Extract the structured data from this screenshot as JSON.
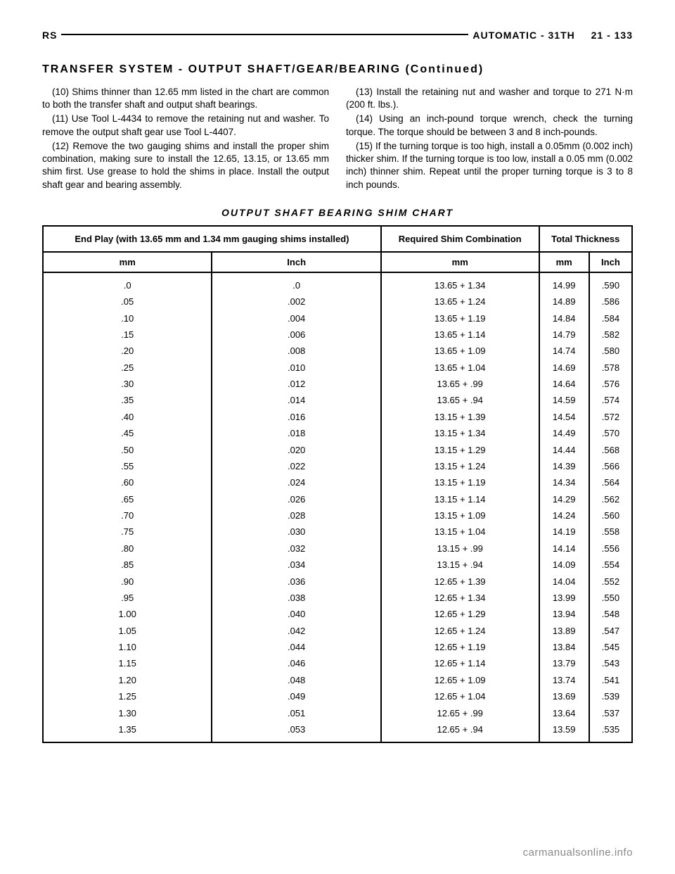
{
  "header": {
    "left": "RS",
    "right_section": "AUTOMATIC - 31TH",
    "page": "21 - 133"
  },
  "section_title": "TRANSFER SYSTEM - OUTPUT SHAFT/GEAR/BEARING (Continued)",
  "left_col": [
    "(10) Shims thinner than 12.65 mm listed in the chart are common to both the transfer shaft and output shaft bearings.",
    "(11) Use Tool L-4434 to remove the retaining nut and washer. To remove the output shaft gear use Tool L-4407.",
    "(12) Remove the two gauging shims and install the proper shim combination, making sure to install the 12.65, 13.15, or 13.65 mm shim first. Use grease to hold the shims in place. Install the output shaft gear and bearing assembly."
  ],
  "right_col": [
    "(13) Install the retaining nut and washer and torque to 271 N·m (200 ft. lbs.).",
    "(14) Using an inch-pound torque wrench, check the turning torque. The torque should be between 3 and 8 inch-pounds.",
    "(15) If the turning torque is too high, install a 0.05mm (0.002 inch) thicker shim. If the turning torque is too low, install a 0.05 mm (0.002 inch) thinner shim. Repeat until the proper turning torque is 3 to 8 inch pounds."
  ],
  "chart_title": "OUTPUT SHAFT BEARING SHIM CHART",
  "table": {
    "head1": "End Play (with 13.65 mm and 1.34 mm gauging shims installed)",
    "head2": "Required Shim Combination",
    "head3": "Total Thickness",
    "unit_mm": "mm",
    "unit_inch": "Inch",
    "rows": [
      [
        ".0",
        ".0",
        "13.65 + 1.34",
        "14.99",
        ".590"
      ],
      [
        ".05",
        ".002",
        "13.65 + 1.24",
        "14.89",
        ".586"
      ],
      [
        ".10",
        ".004",
        "13.65 + 1.19",
        "14.84",
        ".584"
      ],
      [
        ".15",
        ".006",
        "13.65 + 1.14",
        "14.79",
        ".582"
      ],
      [
        ".20",
        ".008",
        "13.65 + 1.09",
        "14.74",
        ".580"
      ],
      [
        ".25",
        ".010",
        "13.65 + 1.04",
        "14.69",
        ".578"
      ],
      [
        ".30",
        ".012",
        "13.65 + .99",
        "14.64",
        ".576"
      ],
      [
        ".35",
        ".014",
        "13.65 + .94",
        "14.59",
        ".574"
      ],
      [
        ".40",
        ".016",
        "13.15 + 1.39",
        "14.54",
        ".572"
      ],
      [
        ".45",
        ".018",
        "13.15 + 1.34",
        "14.49",
        ".570"
      ],
      [
        ".50",
        ".020",
        "13.15 + 1.29",
        "14.44",
        ".568"
      ],
      [
        ".55",
        ".022",
        "13.15 + 1.24",
        "14.39",
        ".566"
      ],
      [
        ".60",
        ".024",
        "13.15 + 1.19",
        "14.34",
        ".564"
      ],
      [
        ".65",
        ".026",
        "13.15 + 1.14",
        "14.29",
        ".562"
      ],
      [
        ".70",
        ".028",
        "13.15 + 1.09",
        "14.24",
        ".560"
      ],
      [
        ".75",
        ".030",
        "13.15 + 1.04",
        "14.19",
        ".558"
      ],
      [
        ".80",
        ".032",
        "13.15 + .99",
        "14.14",
        ".556"
      ],
      [
        ".85",
        ".034",
        "13.15 + .94",
        "14.09",
        ".554"
      ],
      [
        ".90",
        ".036",
        "12.65 + 1.39",
        "14.04",
        ".552"
      ],
      [
        ".95",
        ".038",
        "12.65 + 1.34",
        "13.99",
        ".550"
      ],
      [
        "1.00",
        ".040",
        "12.65 + 1.29",
        "13.94",
        ".548"
      ],
      [
        "1.05",
        ".042",
        "12.65 + 1.24",
        "13.89",
        ".547"
      ],
      [
        "1.10",
        ".044",
        "12.65 + 1.19",
        "13.84",
        ".545"
      ],
      [
        "1.15",
        ".046",
        "12.65 + 1.14",
        "13.79",
        ".543"
      ],
      [
        "1.20",
        ".048",
        "12.65 + 1.09",
        "13.74",
        ".541"
      ],
      [
        "1.25",
        ".049",
        "12.65 + 1.04",
        "13.69",
        ".539"
      ],
      [
        "1.30",
        ".051",
        "12.65 + .99",
        "13.64",
        ".537"
      ],
      [
        "1.35",
        ".053",
        "12.65 + .94",
        "13.59",
        ".535"
      ]
    ]
  },
  "footer": "carmanualsonline.info"
}
